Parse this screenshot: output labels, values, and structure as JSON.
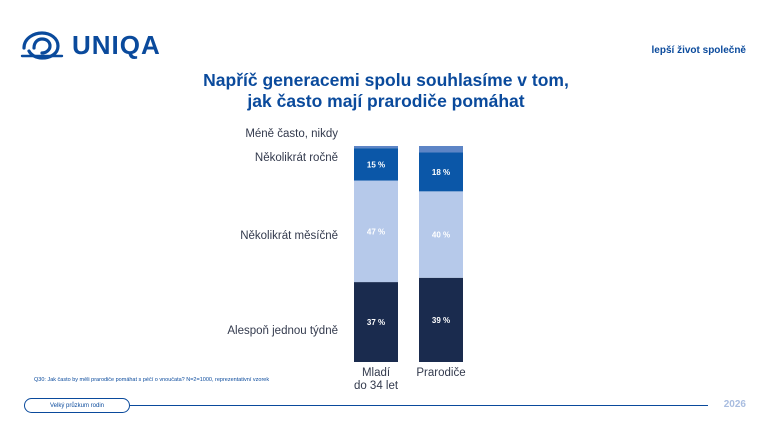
{
  "brand": {
    "name": "UNIQA",
    "tagline": "lepší život společně"
  },
  "title": [
    "Napříč generacemi spolu souhlasíme v tom,",
    "jak často mají prarodiče pomáhat"
  ],
  "colors": {
    "brand_blue": "#0a4a9c",
    "weekly": "#1a2b4e",
    "monthly": "#b6c9ea",
    "yearly": "#0b57a8",
    "less": "#5d85c6"
  },
  "chart_data": {
    "type": "bar",
    "stacked": true,
    "categories": [
      "Mladí do 34 let",
      "Prarodiče"
    ],
    "category_lines": [
      [
        "Mladí",
        "do 34 let"
      ],
      [
        "Prarodiče"
      ]
    ],
    "series": [
      {
        "name": "Alespoň jednou týdně",
        "values": [
          37,
          39
        ],
        "labels": [
          "37 %",
          "39 %"
        ],
        "color": "#1a2b4e"
      },
      {
        "name": "Několikrát měsíčně",
        "values": [
          47,
          40
        ],
        "labels": [
          "47 %",
          "40 %"
        ],
        "color": "#b6c9ea"
      },
      {
        "name": "Několikrát ročně",
        "values": [
          15,
          18
        ],
        "labels": [
          "15 %",
          "18 %"
        ],
        "color": "#0b57a8"
      },
      {
        "name": "Méně často, nikdy",
        "values": [
          1,
          3
        ],
        "labels": [
          "",
          ""
        ],
        "color": "#5d85c6"
      }
    ],
    "value_unit": "%",
    "ylim": [
      0,
      100
    ]
  },
  "note": "Q30: Jak často by měli prarodiče pomáhat s péčí o vnoučata? N=2=1000, reprezentativní vzorek",
  "footer": {
    "pill": "Velký průzkum rodin",
    "year": "2026"
  }
}
